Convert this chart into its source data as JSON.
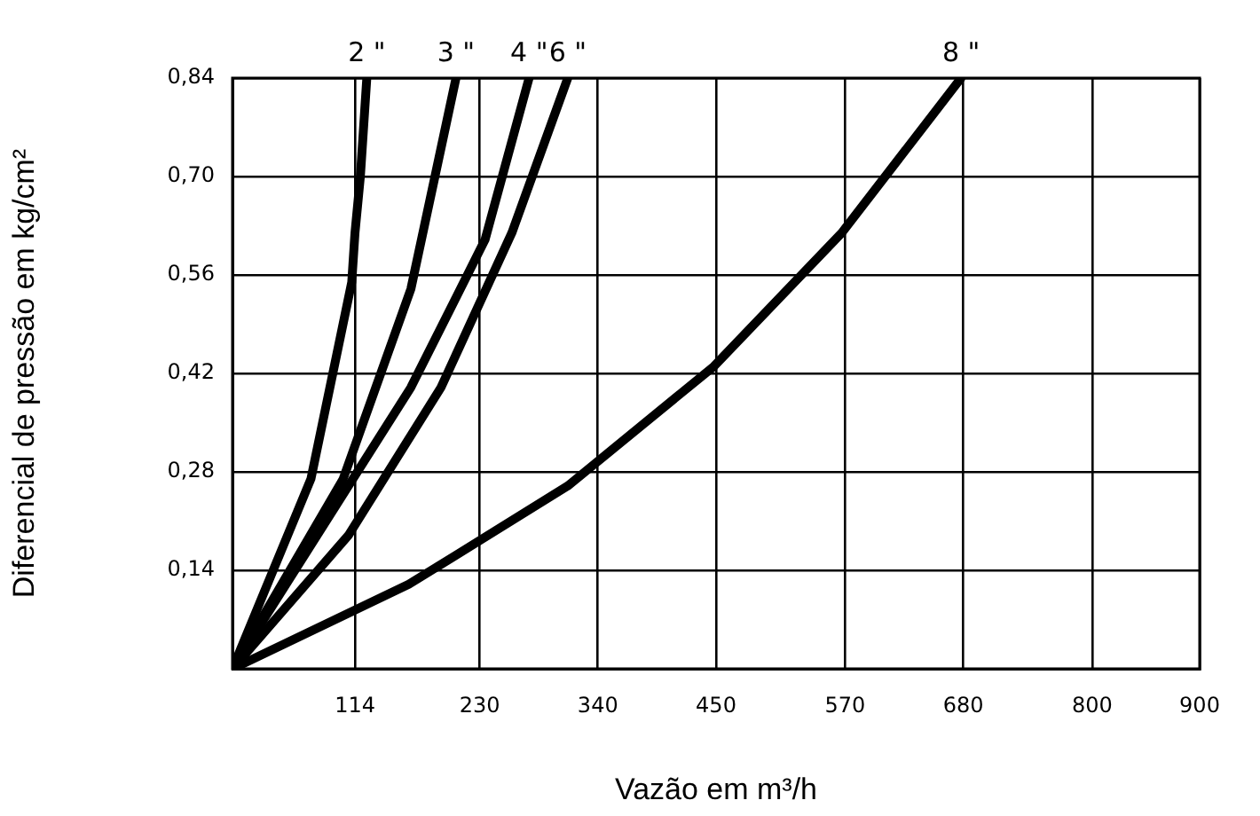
{
  "chart_data": {
    "type": "line",
    "xlabel": "Vazão em m³/h",
    "ylabel": "Diferencial de pressão em kg/cm²",
    "series": [
      {
        "name": "2 \"",
        "color": "#000000",
        "x": [
          0,
          73,
          111,
          114,
          119,
          125
        ],
        "values": [
          0,
          0.27,
          0.55,
          0.62,
          0.7,
          0.84
        ]
      },
      {
        "name": "3 \"",
        "color": "#000000",
        "x": [
          0,
          103,
          166,
          208
        ],
        "values": [
          0,
          0.27,
          0.54,
          0.84
        ]
      },
      {
        "name": "4 \"",
        "color": "#000000",
        "x": [
          0,
          166,
          235,
          276
        ],
        "values": [
          0,
          0.4,
          0.61,
          0.84
        ]
      },
      {
        "name": "6 \"",
        "color": "#000000",
        "x": [
          0,
          108,
          194,
          260,
          312
        ],
        "values": [
          0,
          0.19,
          0.4,
          0.62,
          0.84
        ]
      },
      {
        "name": "8 \"",
        "color": "#000000",
        "x": [
          0,
          164,
          312,
          448,
          567,
          678
        ],
        "values": [
          0,
          0.12,
          0.26,
          0.43,
          0.62,
          0.84
        ]
      }
    ],
    "xlim": [
      0,
      900
    ],
    "ylim": [
      0,
      0.84
    ],
    "xticks": [
      114,
      230,
      340,
      450,
      570,
      680,
      800,
      900
    ],
    "yticks": [
      {
        "value": 0.14,
        "label": "0,14"
      },
      {
        "value": 0.28,
        "label": "0,28"
      },
      {
        "value": 0.42,
        "label": "0,42"
      },
      {
        "value": 0.56,
        "label": "0,56"
      },
      {
        "value": 0.7,
        "label": "0,70"
      },
      {
        "value": 0.84,
        "label": "0,84"
      }
    ],
    "grid": true
  }
}
